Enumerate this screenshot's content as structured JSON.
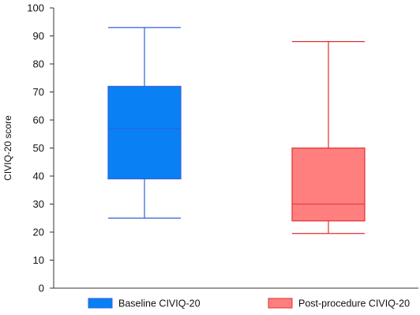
{
  "chart_data": {
    "type": "boxplot",
    "title": "",
    "xlabel": "",
    "ylabel": "CIVIQ-20 score",
    "ylim": [
      0,
      100
    ],
    "yticks": [
      0,
      10,
      20,
      30,
      40,
      50,
      60,
      70,
      80,
      90,
      100
    ],
    "grid": false,
    "legend_position": "bottom",
    "series": [
      {
        "name": "Baseline CIVIQ-20",
        "color": "#0a80f5",
        "stroke": "#3060d8",
        "min": 25,
        "q1": 39,
        "median": 57,
        "q3": 72,
        "max": 93
      },
      {
        "name": "Post-procedure CIVIQ-20",
        "color": "#ff7f7f",
        "stroke": "#e03030",
        "min": 19.5,
        "q1": 24,
        "median": 30,
        "q3": 50,
        "max": 88
      }
    ]
  }
}
